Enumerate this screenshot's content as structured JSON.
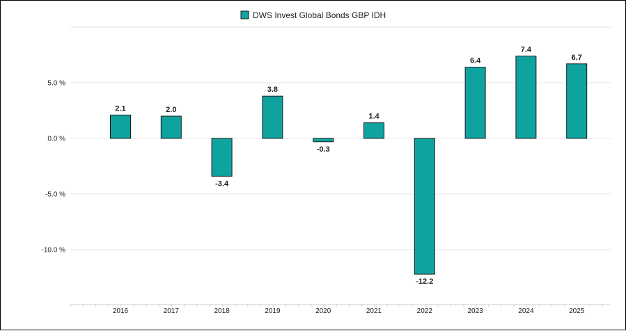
{
  "chart_data": {
    "type": "bar",
    "title": "",
    "xlabel": "",
    "ylabel": "",
    "categories": [
      "2016",
      "2017",
      "2018",
      "2019",
      "2020",
      "2021",
      "2022",
      "2023",
      "2024",
      "2025"
    ],
    "series": [
      {
        "name": "DWS Invest Global Bonds GBP IDH",
        "values": [
          2.1,
          2.0,
          -3.4,
          3.8,
          -0.3,
          1.4,
          -12.2,
          6.4,
          7.4,
          6.7
        ],
        "color": "#0FA3A0"
      }
    ],
    "data_labels": [
      "2.1",
      "2.0",
      "-3.4",
      "3.8",
      "-0.3",
      "1.4",
      "-12.2",
      "6.4",
      "7.4",
      "6.7"
    ],
    "y_ticks": [
      5.0,
      0.0,
      -5.0,
      -10.0
    ],
    "y_tick_labels": [
      "5.0 %",
      "0.0 %",
      "-5.0 %",
      "-10.0 %"
    ],
    "ylim": [
      -15,
      10
    ],
    "grid": true,
    "legend_position": "top-center",
    "colors": {
      "bar": "#0FA3A0",
      "bar_stroke": "#1a1a1a",
      "grid": "#e6e6e6",
      "axis": "#cccccc"
    }
  }
}
